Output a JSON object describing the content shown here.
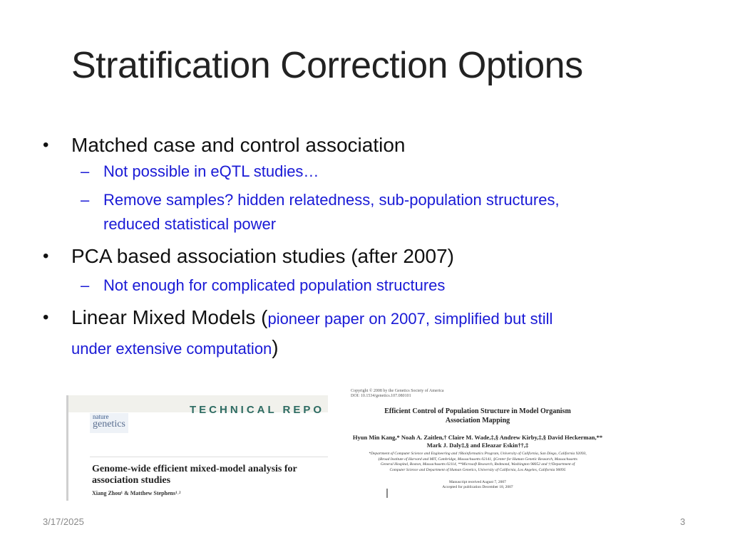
{
  "slide": {
    "title": "Stratification Correction Options",
    "bullets": [
      {
        "text": "Matched case and control association",
        "sub": [
          "Not possible in eQTL studies…",
          "Remove samples? hidden relatedness, sub-population structures,",
          "reduced statistical power"
        ]
      },
      {
        "text": "PCA based association studies (after 2007)",
        "sub": [
          "Not enough for complicated population structures"
        ]
      },
      {
        "text": "Linear Mixed Models (",
        "inline_blue_1": "pioneer paper on 2007, simplified but still",
        "inline_blue_2": "under extensive computation",
        "close": ")"
      }
    ],
    "footer": {
      "date": "3/17/2025",
      "page": "3"
    }
  },
  "paper_left": {
    "header": "TECHNICAL REPO",
    "journal_line1": "nature",
    "journal_line2": "genetics",
    "title_line1": "Genome-wide efficient mixed-model analysis for",
    "title_line2": "association studies",
    "authors": "Xiang Zhou¹ & Matthew Stephens¹˒²"
  },
  "paper_right": {
    "copyright_1": "Copyright © 2008 by the Genetics Society of America",
    "copyright_2": "DOI: 10.1534/genetics.107.080101",
    "title_1": "Efficient Control of Population Structure in Model Organism",
    "title_2": "Association Mapping",
    "authors_1": "Hyun Min Kang,* Noah A. Zaitlen,† Claire M. Wade,‡,§ Andrew Kirby,‡,§ David Heckerman,**",
    "authors_2": "Mark J. Daly‡,§ and Eleazar Eskin††,‡",
    "affil_1": "*Department of Computer Science and Engineering and †Bioinformatics Program, University of California, San Diego, California 92093,",
    "affil_2": "‡Broad Institute of Harvard and MIT, Cambridge, Massachusetts 02141, §Center for Human Genetic Research, Massachusetts",
    "affil_3": "General Hospital, Boston, Massachusetts 02114, **Microsoft Research, Redmond, Washington 98052 and ††Department of",
    "affil_4": "Computer Science and Department of Human Genetics, University of California, Los Angeles, California 90095",
    "received": "Manuscript received August 7, 2007",
    "accepted": "Accepted for publication December 18, 2007"
  }
}
